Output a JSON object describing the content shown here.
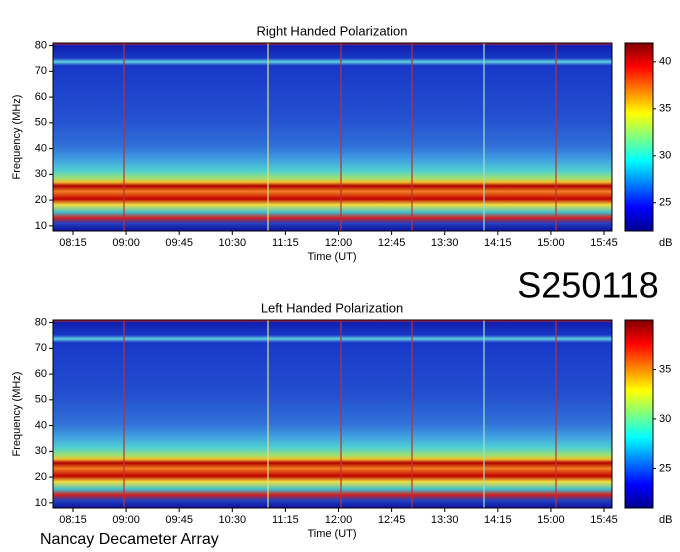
{
  "chart_data": [
    {
      "type": "heatmap",
      "title": "Right Handed Polarization",
      "xlabel": "Time (UT)",
      "ylabel": "Frequency (MHz)",
      "categories": [
        "08:15",
        "09:00",
        "09:45",
        "10:30",
        "11:15",
        "12:00",
        "12:45",
        "13:30",
        "14:15",
        "15:00",
        "15:45"
      ],
      "ylim": [
        8,
        81
      ],
      "yticks": [
        10,
        20,
        30,
        40,
        50,
        60,
        70,
        80
      ],
      "clim": [
        22,
        42
      ],
      "cticks": [
        25,
        30,
        35,
        40
      ],
      "clabel": "dB"
    },
    {
      "type": "heatmap",
      "title": "Left Handed Polarization",
      "xlabel": "Time (UT)",
      "ylabel": "Frequency (MHz)",
      "categories": [
        "08:15",
        "09:00",
        "09:45",
        "10:30",
        "11:15",
        "12:00",
        "12:45",
        "13:30",
        "14:15",
        "15:00",
        "15:45"
      ],
      "ylim": [
        8,
        81
      ],
      "yticks": [
        10,
        20,
        30,
        40,
        50,
        60,
        70,
        80
      ],
      "clim": [
        21,
        40
      ],
      "cticks": [
        25,
        30,
        35
      ],
      "clabel": "dB"
    }
  ],
  "label": "S250118",
  "footer": "Nancay Decameter Array"
}
